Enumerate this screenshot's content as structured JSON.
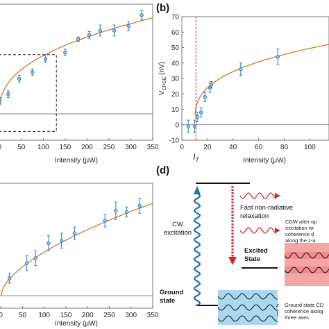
{
  "chart_data": [
    {
      "panel": "",
      "type": "scatter",
      "xlabel": "Intensity (μW)",
      "ylabel": "",
      "xlim": [
        -2,
        350
      ],
      "ylim": [
        -1.2,
        5
      ],
      "xticks": [
        0,
        50,
        100,
        150,
        200,
        250,
        300,
        350
      ],
      "x": [
        1,
        20,
        45,
        75,
        105,
        150,
        180,
        205,
        230,
        262,
        295,
        325
      ],
      "y": [
        0.6,
        0.9,
        1.6,
        1.9,
        2.5,
        2.8,
        3.4,
        3.6,
        3.8,
        3.8,
        4.0,
        4.5
      ],
      "yerr": [
        0.15,
        0.15,
        0.15,
        0.15,
        0.15,
        0.15,
        0.1,
        0.15,
        0.25,
        0.25,
        0.2,
        0.2
      ],
      "fit": "power-law",
      "inset_box": {
        "x": [
          -2,
          130
        ],
        "y": [
          -0.8,
          2.7
        ]
      }
    },
    {
      "panel": "(b)",
      "type": "scatter",
      "xlabel": "Intensity (μW)",
      "ylabel": "V_CPGE (nV)",
      "ylim": [
        -10,
        70
      ],
      "yticks": [
        -10,
        0,
        10,
        20,
        30,
        40,
        50,
        60,
        70
      ],
      "xlim": [
        0,
        115
      ],
      "xticks": [
        0,
        20,
        40,
        60,
        80,
        100
      ],
      "x": [
        5,
        10,
        12,
        15,
        18,
        22,
        23,
        46,
        75
      ],
      "y": [
        -1,
        -1,
        5,
        8,
        18,
        24,
        26,
        36,
        44
      ],
      "yerr": [
        4,
        4,
        3,
        3,
        3,
        3,
        2,
        4,
        5
      ],
      "threshold_label": "I_T",
      "threshold_x": 11
    },
    {
      "panel": "",
      "type": "scatter",
      "xlabel": "Intensity (μW)",
      "ylabel": "",
      "xlim": [
        -5,
        350
      ],
      "ylim": [
        -0.5,
        4.5
      ],
      "xticks": [
        0,
        50,
        100,
        150,
        200,
        250,
        300,
        350
      ],
      "x": [
        20,
        60,
        80,
        110,
        140,
        170,
        240,
        265,
        290,
        320
      ],
      "y": [
        0.7,
        1.3,
        1.5,
        2.1,
        2.2,
        2.5,
        3.0,
        3.4,
        3.35,
        3.6
      ],
      "yerr": [
        0.2,
        0.3,
        0.3,
        0.3,
        0.3,
        0.25,
        0.25,
        0.35,
        0.2,
        0.3
      ],
      "fit": "power-law"
    }
  ],
  "diagram": {
    "panel": "(d)",
    "cw_excitation": "CW\nexcitation",
    "relaxation": "Fast non-radiative\nrelaxation",
    "excited_state": "Excited\nState",
    "ground_state": "Ground\nstate",
    "cdw_excited": "CDW after op\nexcitation wi\ncoherence d\nalong the z-a",
    "cdw_ground": "Ground state CD\ncoherence along\nthree axes",
    "z_axis": "z",
    "colors": {
      "cw_arrow": "#1f6fb2",
      "relax_arrow": "#d62728",
      "excited_band": "#f4a6a6",
      "ground_band": "#a9d8ef"
    }
  },
  "colors": {
    "marker": "#2a7bb8",
    "fit": "#d2691e",
    "threshold": "#d62728"
  }
}
